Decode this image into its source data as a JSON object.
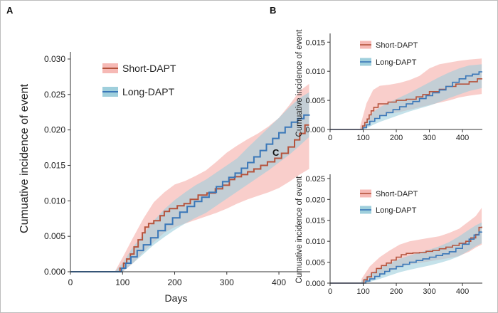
{
  "colors": {
    "short_line": "#b5533c",
    "short_band": "#f6b9b5",
    "long_line": "#3a77b8",
    "long_band": "#9fcfdc",
    "axis": "#333333"
  },
  "chart_data": [
    {
      "panel": "A",
      "type": "line",
      "title": "",
      "xlabel": "Days",
      "ylabel": "Cumuative incidence of event",
      "xlim": [
        0,
        460
      ],
      "ylim": [
        0,
        0.031
      ],
      "xticks": [
        0,
        100,
        200,
        300,
        400
      ],
      "yticks": [
        0.0,
        0.005,
        0.01,
        0.015,
        0.02,
        0.025,
        0.03
      ],
      "ytick_labels": [
        "0.000",
        "0.005",
        "0.010",
        "0.015",
        "0.020",
        "0.025",
        "0.030"
      ],
      "legend": {
        "position": "top-center",
        "entries": [
          "Short-DAPT",
          "Long-DAPT"
        ]
      },
      "series": [
        {
          "name": "Short-DAPT",
          "style": "step",
          "x": [
            0,
            90,
            95,
            102,
            108,
            115,
            122,
            130,
            138,
            143,
            150,
            160,
            172,
            180,
            190,
            205,
            218,
            230,
            245,
            262,
            278,
            292,
            305,
            315,
            328,
            340,
            352,
            365,
            378,
            392,
            405,
            418,
            430,
            440,
            450,
            458
          ],
          "y": [
            0,
            0,
            0.0005,
            0.0012,
            0.0018,
            0.0025,
            0.0035,
            0.0045,
            0.0055,
            0.0063,
            0.0068,
            0.0072,
            0.0079,
            0.0085,
            0.0089,
            0.0093,
            0.0096,
            0.0102,
            0.0108,
            0.0111,
            0.0117,
            0.0122,
            0.013,
            0.0134,
            0.0137,
            0.0141,
            0.0145,
            0.015,
            0.0155,
            0.016,
            0.0167,
            0.0176,
            0.0186,
            0.0195,
            0.0207,
            0.0207
          ],
          "band_x": [
            85,
            100,
            120,
            140,
            160,
            180,
            200,
            220,
            240,
            260,
            280,
            300,
            320,
            340,
            360,
            380,
            400,
            420,
            440,
            458
          ],
          "band_lower": [
            0,
            0,
            0.0012,
            0.0028,
            0.0042,
            0.0055,
            0.0063,
            0.0068,
            0.0073,
            0.0078,
            0.0083,
            0.0089,
            0.0096,
            0.0102,
            0.0107,
            0.0112,
            0.0118,
            0.0127,
            0.0137,
            0.0145
          ],
          "band_upper": [
            0,
            0.002,
            0.0048,
            0.0075,
            0.0098,
            0.0112,
            0.0123,
            0.0128,
            0.0135,
            0.0143,
            0.0155,
            0.0168,
            0.0178,
            0.0187,
            0.0195,
            0.0205,
            0.0217,
            0.0235,
            0.0255,
            0.0265
          ]
        },
        {
          "name": "Long-DAPT",
          "style": "step",
          "x": [
            0,
            92,
            98,
            106,
            116,
            128,
            140,
            154,
            168,
            182,
            196,
            210,
            224,
            238,
            252,
            266,
            280,
            292,
            304,
            316,
            328,
            340,
            352,
            364,
            376,
            388,
            400,
            412,
            424,
            436,
            448,
            458
          ],
          "y": [
            0,
            0,
            0.0005,
            0.0012,
            0.0021,
            0.003,
            0.0038,
            0.0048,
            0.0058,
            0.0067,
            0.0076,
            0.0084,
            0.0092,
            0.0099,
            0.0105,
            0.0112,
            0.012,
            0.0127,
            0.0133,
            0.0139,
            0.0146,
            0.0154,
            0.0162,
            0.0171,
            0.018,
            0.0188,
            0.0196,
            0.0204,
            0.0211,
            0.0216,
            0.0221,
            0.0222
          ],
          "band_x": [
            85,
            100,
            120,
            140,
            160,
            180,
            200,
            220,
            240,
            260,
            280,
            300,
            320,
            340,
            360,
            380,
            400,
            420,
            440,
            458
          ],
          "band_lower": [
            0,
            0,
            0.0012,
            0.0025,
            0.0038,
            0.0049,
            0.0059,
            0.0068,
            0.0076,
            0.0083,
            0.0093,
            0.0103,
            0.0113,
            0.0123,
            0.0133,
            0.0143,
            0.0154,
            0.0165,
            0.0178,
            0.019
          ],
          "band_upper": [
            0,
            0.0012,
            0.0035,
            0.0053,
            0.0072,
            0.0088,
            0.0101,
            0.0112,
            0.0122,
            0.013,
            0.014,
            0.015,
            0.016,
            0.0175,
            0.0189,
            0.0203,
            0.0217,
            0.0232,
            0.0245,
            0.0253
          ]
        }
      ]
    },
    {
      "panel": "B",
      "type": "line",
      "title": "",
      "xlabel": "",
      "ylabel": "Cumuative incidence of event",
      "xlim": [
        0,
        460
      ],
      "ylim": [
        0,
        0.0165
      ],
      "xticks": [
        0,
        100,
        200,
        300,
        400
      ],
      "yticks": [
        0.0,
        0.005,
        0.01,
        0.015
      ],
      "ytick_labels": [
        "0.000",
        "0.005",
        "0.010",
        "0.015"
      ],
      "legend": {
        "position": "top-center",
        "entries": [
          "Short-DAPT",
          "Long-DAPT"
        ]
      },
      "series": [
        {
          "name": "Short-DAPT",
          "style": "step",
          "x": [
            0,
            92,
            98,
            105,
            112,
            118,
            124,
            132,
            145,
            175,
            200,
            230,
            260,
            280,
            300,
            330,
            350,
            380,
            420,
            445,
            458
          ],
          "y": [
            0,
            0,
            0.0006,
            0.0012,
            0.0018,
            0.0025,
            0.0032,
            0.0038,
            0.0044,
            0.0047,
            0.005,
            0.0052,
            0.0056,
            0.006,
            0.0065,
            0.0069,
            0.0074,
            0.0078,
            0.0082,
            0.0087,
            0.0088
          ],
          "band_x": [
            90,
            110,
            130,
            150,
            180,
            210,
            240,
            270,
            300,
            330,
            360,
            390,
            420,
            458
          ],
          "band_lower": [
            0,
            0.0004,
            0.0015,
            0.0022,
            0.0027,
            0.003,
            0.0034,
            0.0038,
            0.0042,
            0.0046,
            0.005,
            0.0055,
            0.0058,
            0.0061
          ],
          "band_upper": [
            0.0004,
            0.0045,
            0.0068,
            0.0075,
            0.0077,
            0.008,
            0.0085,
            0.0092,
            0.0105,
            0.0112,
            0.0115,
            0.0118,
            0.012,
            0.0122
          ]
        },
        {
          "name": "Long-DAPT",
          "style": "step",
          "x": [
            0,
            92,
            100,
            110,
            120,
            135,
            150,
            170,
            190,
            210,
            230,
            250,
            270,
            290,
            310,
            330,
            350,
            370,
            390,
            410,
            430,
            450,
            458
          ],
          "y": [
            0,
            0,
            0.0003,
            0.0008,
            0.0014,
            0.0019,
            0.0024,
            0.0029,
            0.0034,
            0.0039,
            0.0044,
            0.0048,
            0.0053,
            0.0058,
            0.0063,
            0.0068,
            0.0074,
            0.0081,
            0.0087,
            0.0092,
            0.0095,
            0.0099,
            0.01
          ],
          "band_x": [
            90,
            110,
            130,
            150,
            180,
            210,
            240,
            270,
            300,
            330,
            360,
            390,
            420,
            458
          ],
          "band_lower": [
            0,
            0.0002,
            0.0008,
            0.0013,
            0.0019,
            0.0025,
            0.0031,
            0.0036,
            0.0041,
            0.0047,
            0.0054,
            0.006,
            0.0066,
            0.0071
          ],
          "band_upper": [
            0,
            0.0016,
            0.003,
            0.0038,
            0.0047,
            0.0055,
            0.0063,
            0.0072,
            0.0081,
            0.009,
            0.0098,
            0.0105,
            0.011,
            0.0112
          ]
        }
      ]
    },
    {
      "panel": "C",
      "type": "line",
      "title": "",
      "xlabel": "",
      "ylabel": "Cumuative incidence of event",
      "xlim": [
        0,
        460
      ],
      "ylim": [
        0,
        0.026
      ],
      "xticks": [
        0,
        100,
        200,
        300,
        400
      ],
      "yticks": [
        0.0,
        0.005,
        0.01,
        0.015,
        0.02,
        0.025
      ],
      "ytick_labels": [
        "0.000",
        "0.005",
        "0.010",
        "0.015",
        "0.020",
        "0.025"
      ],
      "legend": {
        "position": "top-center",
        "entries": [
          "Short-DAPT",
          "Long-DAPT"
        ]
      },
      "series": [
        {
          "name": "Short-DAPT",
          "style": "step",
          "x": [
            0,
            95,
            102,
            112,
            125,
            140,
            155,
            170,
            185,
            200,
            215,
            230,
            250,
            270,
            290,
            310,
            330,
            350,
            370,
            390,
            410,
            425,
            440,
            450,
            458
          ],
          "y": [
            0,
            0,
            0.0008,
            0.0015,
            0.0025,
            0.0035,
            0.0042,
            0.0048,
            0.0055,
            0.0062,
            0.0068,
            0.0071,
            0.0072,
            0.0073,
            0.0076,
            0.0078,
            0.0082,
            0.0086,
            0.009,
            0.0095,
            0.01,
            0.0108,
            0.0116,
            0.0133,
            0.0135
          ],
          "band_x": [
            95,
            120,
            150,
            180,
            210,
            240,
            270,
            300,
            330,
            360,
            390,
            420,
            440,
            458
          ],
          "band_lower": [
            0,
            0.0008,
            0.0018,
            0.0028,
            0.0038,
            0.0045,
            0.0048,
            0.0052,
            0.0056,
            0.006,
            0.0065,
            0.0075,
            0.0085,
            0.0092
          ],
          "band_upper": [
            0.001,
            0.004,
            0.0062,
            0.0078,
            0.0092,
            0.01,
            0.0104,
            0.0108,
            0.0112,
            0.012,
            0.013,
            0.0148,
            0.016,
            0.018
          ]
        },
        {
          "name": "Long-DAPT",
          "style": "step",
          "x": [
            0,
            98,
            108,
            120,
            135,
            150,
            165,
            180,
            200,
            220,
            240,
            260,
            280,
            300,
            320,
            340,
            360,
            380,
            400,
            420,
            435,
            450,
            458
          ],
          "y": [
            0,
            0,
            0.0005,
            0.001,
            0.0016,
            0.0022,
            0.0028,
            0.0034,
            0.004,
            0.0045,
            0.005,
            0.0054,
            0.0058,
            0.0062,
            0.0066,
            0.007,
            0.0075,
            0.0083,
            0.0093,
            0.0105,
            0.0115,
            0.0122,
            0.0123
          ],
          "band_x": [
            95,
            120,
            150,
            180,
            210,
            240,
            270,
            300,
            330,
            360,
            390,
            420,
            440,
            458
          ],
          "band_lower": [
            0,
            0.0003,
            0.001,
            0.0018,
            0.0026,
            0.0032,
            0.0037,
            0.0042,
            0.0048,
            0.0055,
            0.0064,
            0.0078,
            0.0088,
            0.0095
          ],
          "band_upper": [
            0.0005,
            0.0022,
            0.0036,
            0.0048,
            0.0058,
            0.0066,
            0.0073,
            0.008,
            0.0088,
            0.0098,
            0.0112,
            0.0128,
            0.0138,
            0.0145
          ]
        }
      ]
    }
  ]
}
